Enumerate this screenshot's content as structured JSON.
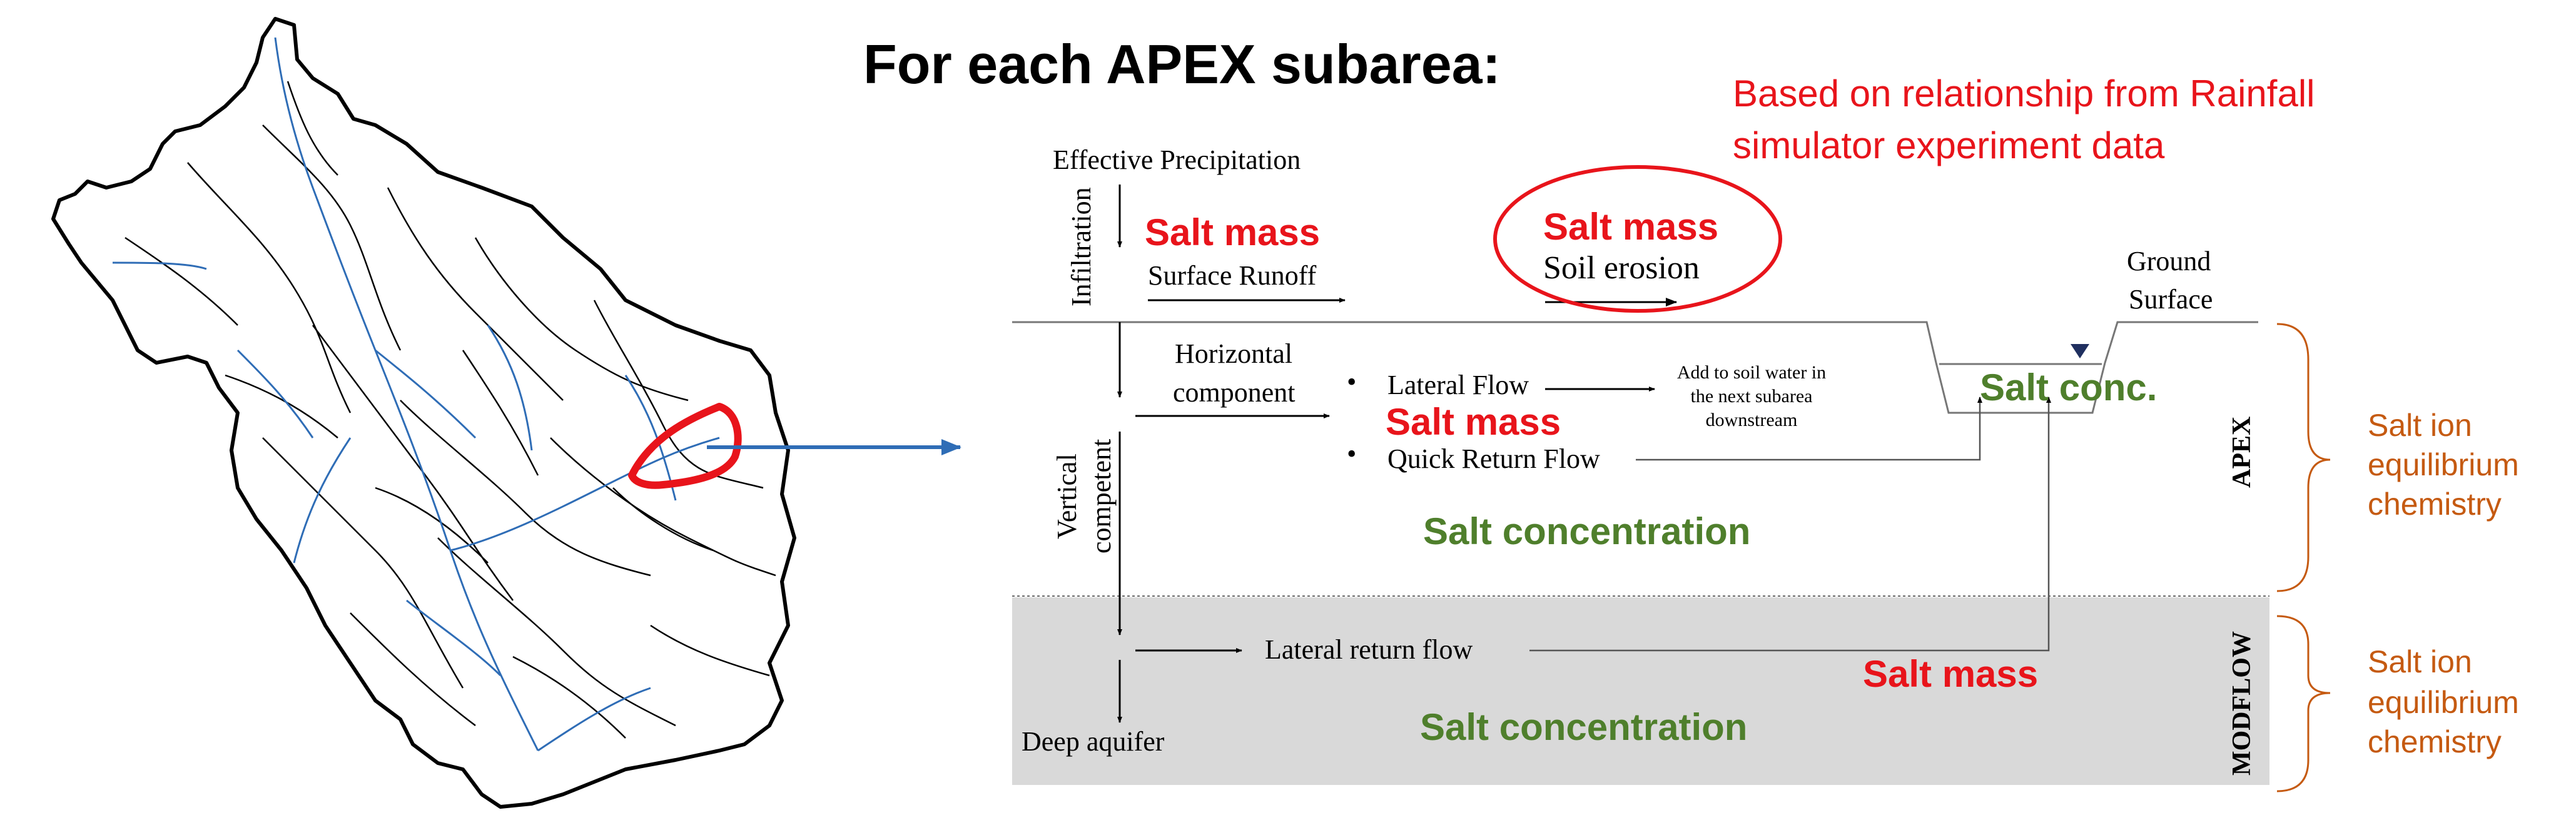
{
  "title": "For each APEX subarea:",
  "note": {
    "line1": "Based on relationship from Rainfall",
    "line2": "simulator experiment data"
  },
  "labels": {
    "effective_precipitation": "Effective Precipitation",
    "infiltration": "Infiltration",
    "surface_runoff": "Surface Runoff",
    "soil_erosion": "Soil erosion",
    "ground": "Ground",
    "surface": "Surface",
    "horizontal": "Horizontal",
    "component": "component",
    "vertical": "Vertical",
    "competent": "competent",
    "lateral_flow": "Lateral Flow",
    "quick_return_flow": "Quick Return Flow",
    "add_soil_1": "Add to soil water in",
    "add_soil_2": "the next subarea",
    "add_soil_3": "downstream",
    "lateral_return_flow": "Lateral return flow",
    "deep_aquifer": "Deep aquifer",
    "apex": "APEX",
    "modflow": "MODFLOW",
    "bullet": "•"
  },
  "salt": {
    "salt_mass": "Salt mass",
    "salt_conc": "Salt conc.",
    "salt_concentration": "Salt concentration"
  },
  "side": {
    "l1": "Salt ion",
    "l2": "equilibrium",
    "l3": "chemistry"
  },
  "colors": {
    "red": "#e8141b",
    "green": "#4f7f2c",
    "orange": "#c55a11",
    "blue": "#2f6db6",
    "modflow_bg": "#d9d9d9"
  }
}
